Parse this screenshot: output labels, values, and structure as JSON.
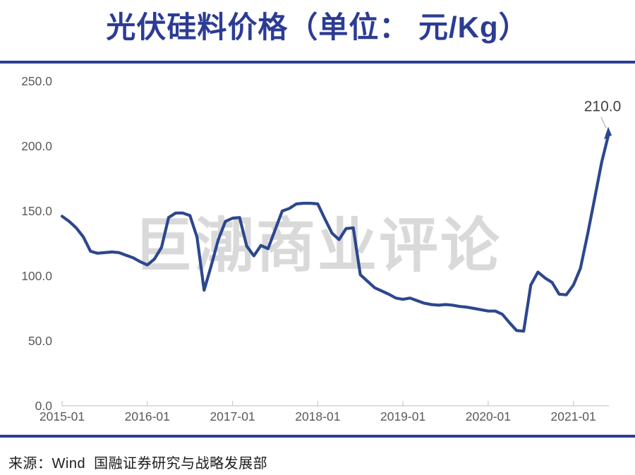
{
  "page": {
    "title": "光伏硅料价格（单位： 元/Kg）",
    "watermark": "巨潮商业评论",
    "source_note": "来源：Wind  国融证券研究与战略发展部"
  },
  "colors": {
    "title_navy": "#2c3c94",
    "divider_navy": "#2c3c94",
    "line_blue": "#2d478e",
    "axis_gray": "#c9c9c9",
    "tick_label_gray": "#5a5a5a",
    "watermark_gray": "#d9d9d9",
    "annotation_dark": "#3f3f3f",
    "leader_gray": "#b0b0b0"
  },
  "chart_data": {
    "type": "line",
    "title": "光伏硅料价格（单位： 元/Kg）",
    "unit": "元/Kg",
    "ylim": [
      0,
      250
    ],
    "ytick_step": 50,
    "yticks": [
      "250.0",
      "200.0",
      "150.0",
      "100.0",
      "50.0",
      "0.0"
    ],
    "xticks": [
      "2015-01",
      "2016-01",
      "2017-01",
      "2018-01",
      "2019-01",
      "2020-01",
      "2021-01"
    ],
    "grid": false,
    "legend": "none",
    "annotation": {
      "text": "210.0",
      "x": "2021-06",
      "value": 210
    },
    "x": [
      "2015-01",
      "2015-02",
      "2015-03",
      "2015-04",
      "2015-05",
      "2015-06",
      "2015-07",
      "2015-08",
      "2015-09",
      "2015-10",
      "2015-11",
      "2015-12",
      "2016-01",
      "2016-02",
      "2016-03",
      "2016-04",
      "2016-05",
      "2016-06",
      "2016-07",
      "2016-08",
      "2016-09",
      "2016-10",
      "2016-11",
      "2016-12",
      "2017-01",
      "2017-02",
      "2017-03",
      "2017-04",
      "2017-05",
      "2017-06",
      "2017-07",
      "2017-08",
      "2017-09",
      "2017-10",
      "2017-11",
      "2017-12",
      "2018-01",
      "2018-02",
      "2018-03",
      "2018-04",
      "2018-05",
      "2018-06",
      "2018-07",
      "2018-08",
      "2018-09",
      "2018-10",
      "2018-11",
      "2018-12",
      "2019-01",
      "2019-02",
      "2019-03",
      "2019-04",
      "2019-05",
      "2019-06",
      "2019-07",
      "2019-08",
      "2019-09",
      "2019-10",
      "2019-11",
      "2019-12",
      "2020-01",
      "2020-02",
      "2020-03",
      "2020-04",
      "2020-05",
      "2020-06",
      "2020-07",
      "2020-08",
      "2020-09",
      "2020-10",
      "2020-11",
      "2020-12",
      "2021-01",
      "2021-02",
      "2021-03",
      "2021-04",
      "2021-05",
      "2021-06"
    ],
    "series": [
      {
        "name": "光伏硅料价格",
        "values": [
          146,
          142,
          137,
          130,
          119,
          117.5,
          118,
          118.5,
          118,
          116,
          114,
          111,
          108.5,
          113,
          122,
          145,
          148.5,
          148.5,
          146.5,
          130,
          89,
          108,
          128,
          142,
          144.5,
          145,
          123,
          115.5,
          123.5,
          121,
          135.5,
          150,
          152,
          155.5,
          156,
          156,
          155.5,
          144,
          133,
          128,
          136.5,
          137,
          101,
          96,
          91,
          88.5,
          86,
          83,
          82,
          83,
          81,
          79,
          78,
          77.5,
          78,
          77.5,
          76.5,
          76,
          75,
          74,
          73,
          73,
          70.5,
          64,
          58,
          57.5,
          93,
          103,
          98.5,
          95,
          86,
          85.5,
          93,
          106,
          132,
          160,
          188,
          210
        ]
      }
    ]
  }
}
